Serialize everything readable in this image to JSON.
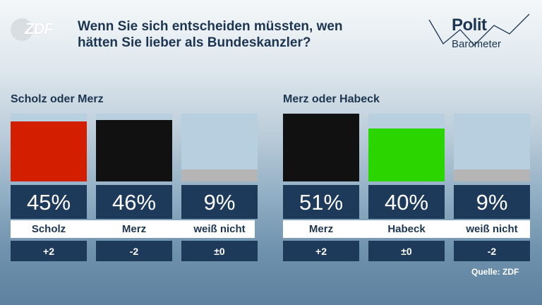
{
  "header": {
    "logo_text": "ZDF",
    "title_line1": "Wenn Sie sich entscheiden müssten, wen",
    "title_line2": "hätten Sie lieber als Bundeskanzler?",
    "brand_line1": "Polit",
    "brand_line2": "Barometer"
  },
  "source": "Quelle: ZDF",
  "colors": {
    "scholz": "#d41e00",
    "merz": "#111111",
    "habeck": "#2bd600",
    "weiss_nicht": "#b5b5b5"
  },
  "chart_data": [
    {
      "type": "bar",
      "title": "Scholz oder Merz",
      "categories": [
        "Scholz",
        "Merz",
        "weiß nicht"
      ],
      "values": [
        45,
        46,
        9
      ],
      "value_labels": [
        "45%",
        "46%",
        "9%"
      ],
      "changes": [
        "+2",
        "-2",
        "±0"
      ],
      "colors": [
        "#d41e00",
        "#111111",
        "#b5b5b5"
      ],
      "ylim": [
        0,
        51
      ]
    },
    {
      "type": "bar",
      "title": "Merz oder Habeck",
      "categories": [
        "Merz",
        "Habeck",
        "weiß nicht"
      ],
      "values": [
        51,
        40,
        9
      ],
      "value_labels": [
        "51%",
        "40%",
        "9%"
      ],
      "changes": [
        "+2",
        "±0",
        "-2"
      ],
      "colors": [
        "#111111",
        "#2bd600",
        "#b5b5b5"
      ],
      "ylim": [
        0,
        51
      ]
    }
  ]
}
